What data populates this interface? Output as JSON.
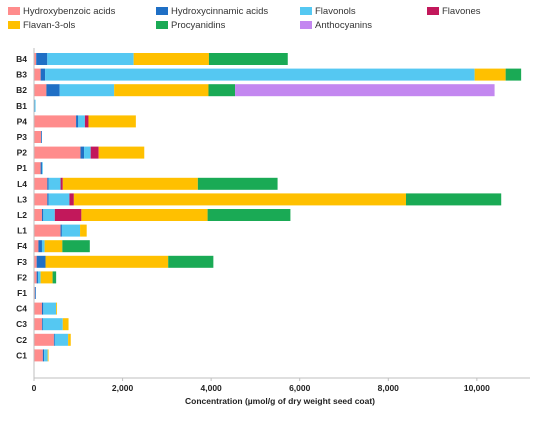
{
  "chart_data": {
    "type": "bar",
    "orientation": "horizontal",
    "stacked": true,
    "title": "",
    "xlabel": "Concentration (µmol/g of dry weight seed coat)",
    "ylabel": "",
    "xlim": [
      0,
      11200
    ],
    "xticks": [
      0,
      2000,
      4000,
      6000,
      8000,
      10000
    ],
    "xtick_labels": [
      "0",
      "2,000",
      "4,000",
      "6,000",
      "8,000",
      "10,000"
    ],
    "grid": false,
    "legend_position": "top",
    "categories": [
      "B4",
      "B3",
      "B2",
      "B1",
      "P4",
      "P3",
      "P2",
      "P1",
      "L4",
      "L3",
      "L2",
      "L1",
      "F4",
      "F3",
      "F2",
      "F1",
      "C4",
      "C3",
      "C2",
      "C1"
    ],
    "series": [
      {
        "name": "Hydroxybenzoic acids",
        "color": "#FF8C8C",
        "values": [
          50,
          150,
          280,
          10,
          950,
          160,
          1050,
          150,
          300,
          300,
          180,
          600,
          100,
          60,
          60,
          20,
          180,
          180,
          450,
          200
        ]
      },
      {
        "name": "Hydroxycinnamic acids",
        "color": "#1F6FC5",
        "values": [
          250,
          100,
          300,
          5,
          50,
          10,
          80,
          30,
          30,
          30,
          30,
          30,
          80,
          200,
          30,
          20,
          30,
          20,
          20,
          30
        ]
      },
      {
        "name": "Flavonols",
        "color": "#55C8F2",
        "values": [
          1950,
          9700,
          1230,
          20,
          150,
          0,
          150,
          10,
          270,
          470,
          260,
          410,
          60,
          0,
          60,
          0,
          290,
          450,
          300,
          80
        ]
      },
      {
        "name": "Flavones",
        "color": "#C2185B",
        "values": [
          0,
          0,
          0,
          0,
          80,
          0,
          180,
          0,
          50,
          100,
          600,
          0,
          0,
          0,
          0,
          0,
          0,
          0,
          0,
          0
        ]
      },
      {
        "name": "Flavan-3-ols",
        "color": "#FFC000",
        "values": [
          1700,
          700,
          2130,
          0,
          1070,
          0,
          1030,
          0,
          3050,
          7500,
          2850,
          150,
          400,
          2770,
          270,
          0,
          20,
          130,
          60,
          10
        ]
      },
      {
        "name": "Procyanidins",
        "color": "#1AAA55",
        "values": [
          1780,
          350,
          600,
          0,
          0,
          0,
          0,
          0,
          1800,
          2150,
          1870,
          0,
          620,
          1020,
          80,
          0,
          0,
          0,
          0,
          0
        ]
      },
      {
        "name": "Anthocyanins",
        "color": "#C387F0",
        "values": [
          0,
          0,
          5860,
          0,
          0,
          0,
          0,
          0,
          0,
          0,
          0,
          0,
          0,
          0,
          0,
          0,
          0,
          0,
          0,
          0
        ]
      }
    ]
  }
}
